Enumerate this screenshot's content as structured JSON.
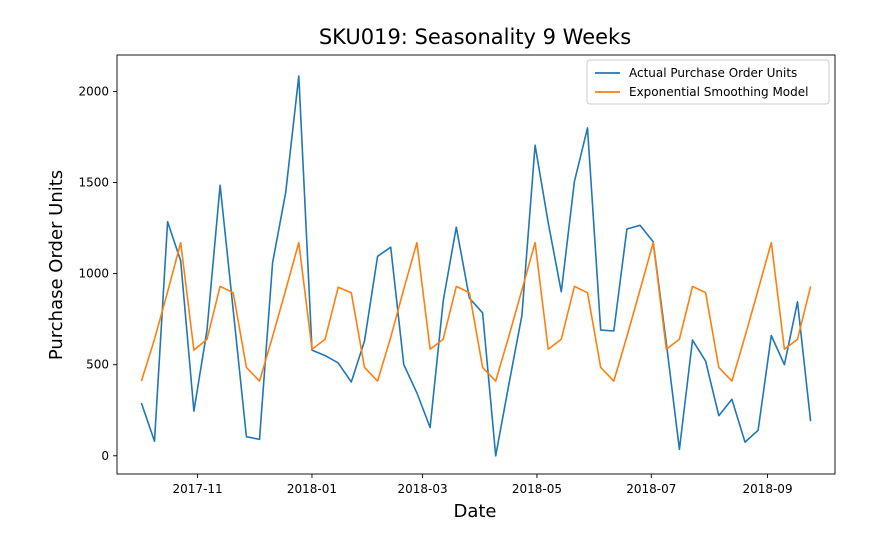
{
  "chart_data": {
    "type": "line",
    "title": "SKU019: Seasonality 9 Weeks",
    "xlabel": "Date",
    "ylabel": "Purchase Order Units",
    "x": [
      "2017-10-02",
      "2017-10-09",
      "2017-10-16",
      "2017-10-23",
      "2017-10-30",
      "2017-11-06",
      "2017-11-13",
      "2017-11-20",
      "2017-11-27",
      "2017-12-04",
      "2017-12-11",
      "2017-12-18",
      "2017-12-25",
      "2018-01-01",
      "2018-01-08",
      "2018-01-15",
      "2018-01-22",
      "2018-01-29",
      "2018-02-05",
      "2018-02-12",
      "2018-02-19",
      "2018-02-26",
      "2018-03-05",
      "2018-03-12",
      "2018-03-19",
      "2018-03-26",
      "2018-04-02",
      "2018-04-09",
      "2018-04-16",
      "2018-04-23",
      "2018-04-30",
      "2018-05-07",
      "2018-05-14",
      "2018-05-21",
      "2018-05-28",
      "2018-06-04",
      "2018-06-11",
      "2018-06-18",
      "2018-06-25",
      "2018-07-02",
      "2018-07-09",
      "2018-07-16",
      "2018-07-23",
      "2018-07-30",
      "2018-08-06",
      "2018-08-13",
      "2018-08-20",
      "2018-08-27",
      "2018-09-03",
      "2018-09-10",
      "2018-09-17",
      "2018-09-24"
    ],
    "series": [
      {
        "name": "Actual Purchase Order Units",
        "color": "#1f77b4",
        "values": [
          290,
          80,
          1285,
          1070,
          245,
          690,
          1485,
          800,
          105,
          90,
          1060,
          1445,
          2085,
          580,
          550,
          510,
          405,
          630,
          1095,
          1145,
          500,
          345,
          155,
          850,
          1255,
          865,
          785,
          0,
          390,
          770,
          1705,
          1280,
          900,
          1505,
          1800,
          690,
          685,
          1245,
          1265,
          1175,
          620,
          35,
          635,
          520,
          220,
          310,
          75,
          140,
          660,
          500,
          845,
          190
        ]
      },
      {
        "name": "Exponential Smoothing Model",
        "color": "#ff7f0e",
        "values": [
          410,
          640,
          900,
          1170,
          580,
          640,
          930,
          895,
          485,
          410,
          655,
          910,
          1170,
          585,
          640,
          925,
          895,
          485,
          410,
          650,
          915,
          1170,
          585,
          640,
          930,
          895,
          485,
          410,
          655,
          910,
          1170,
          585,
          640,
          930,
          895,
          485,
          410,
          655,
          910,
          1170,
          585,
          640,
          930,
          895,
          485,
          410,
          655,
          910,
          1170,
          585,
          640,
          930
        ]
      }
    ],
    "ylim": [
      -100,
      2200
    ],
    "yticks": [
      0,
      500,
      1000,
      1500,
      2000
    ],
    "xlim": [
      "2017-09-19",
      "2018-10-07"
    ],
    "xticks": [
      {
        "date": "2017-11-01",
        "label": "2017-11"
      },
      {
        "date": "2018-01-01",
        "label": "2018-01"
      },
      {
        "date": "2018-03-01",
        "label": "2018-03"
      },
      {
        "date": "2018-05-01",
        "label": "2018-05"
      },
      {
        "date": "2018-07-01",
        "label": "2018-07"
      },
      {
        "date": "2018-09-01",
        "label": "2018-09"
      }
    ],
    "grid": false,
    "legend_position": "top-right"
  }
}
